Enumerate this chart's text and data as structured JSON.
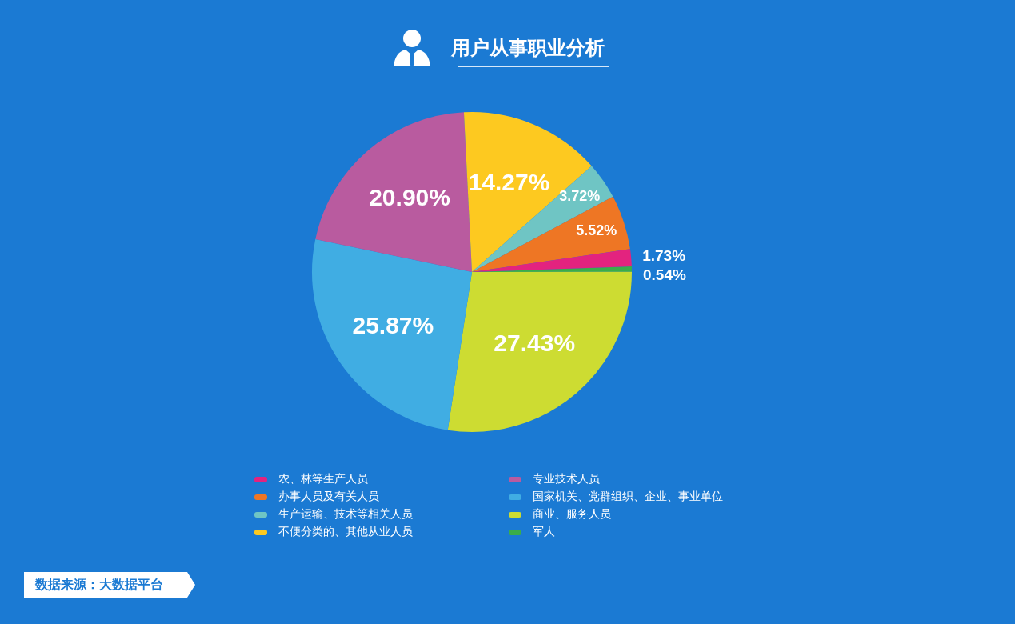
{
  "chart_data": {
    "type": "pie",
    "title": "用户从事职业分析",
    "categories": [
      "农、林等生产人员",
      "办事人员及有关人员",
      "生产运输、技术等相关人员",
      "不便分类的、其他从业人员",
      "专业技术人员",
      "国家机关、党群组织、企业、事业单位",
      "商业、服务人员",
      "军人"
    ],
    "values": [
      1.73,
      5.52,
      3.72,
      14.27,
      20.9,
      25.87,
      27.43,
      0.54
    ],
    "value_labels": [
      "1.73%",
      "5.52%",
      "3.72%",
      "14.27%",
      "20.90%",
      "25.87%",
      "27.43%",
      "0.54%"
    ],
    "colors": [
      "#e3237f",
      "#ee7624",
      "#6fc5c4",
      "#fdc920",
      "#b95b9f",
      "#40ade3",
      "#cddc32",
      "#3aad4a"
    ],
    "legend": "bottom",
    "annotations": [
      "数据来源：大数据平台"
    ]
  }
}
